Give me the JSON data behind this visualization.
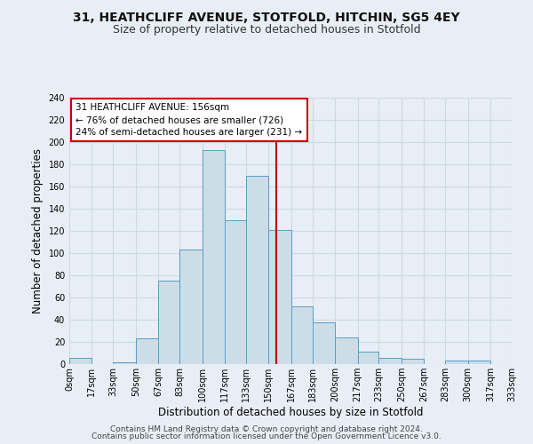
{
  "title1": "31, HEATHCLIFF AVENUE, STOTFOLD, HITCHIN, SG5 4EY",
  "title2": "Size of property relative to detached houses in Stotfold",
  "xlabel": "Distribution of detached houses by size in Stotfold",
  "ylabel": "Number of detached properties",
  "bar_labels": [
    "0sqm",
    "17sqm",
    "33sqm",
    "50sqm",
    "67sqm",
    "83sqm",
    "100sqm",
    "117sqm",
    "133sqm",
    "150sqm",
    "167sqm",
    "183sqm",
    "200sqm",
    "217sqm",
    "233sqm",
    "250sqm",
    "267sqm",
    "283sqm",
    "300sqm",
    "317sqm",
    "333sqm"
  ],
  "bin_edges": [
    0,
    17,
    33,
    50,
    67,
    83,
    100,
    117,
    133,
    150,
    167,
    183,
    200,
    217,
    233,
    250,
    267,
    283,
    300,
    317,
    333
  ],
  "bar_heights": [
    6,
    0,
    2,
    23,
    75,
    103,
    193,
    130,
    170,
    121,
    52,
    38,
    24,
    11,
    6,
    5,
    0,
    3,
    3,
    0
  ],
  "bar_color": "#ccdde8",
  "bar_edge_color": "#5a9dc8",
  "property_size": 156,
  "vline_color": "#cc0000",
  "annotation_title": "31 HEATHCLIFF AVENUE: 156sqm",
  "annotation_line1": "← 76% of detached houses are smaller (726)",
  "annotation_line2": "24% of semi-detached houses are larger (231) →",
  "annotation_box_color": "#ffffff",
  "annotation_box_edge_color": "#cc0000",
  "ylim": [
    0,
    240
  ],
  "yticks": [
    0,
    20,
    40,
    60,
    80,
    100,
    120,
    140,
    160,
    180,
    200,
    220,
    240
  ],
  "grid_color": "#d0d8e4",
  "bg_color": "#e8eef5",
  "fig_bg_color": "#e8eef5",
  "footer1": "Contains HM Land Registry data © Crown copyright and database right 2024.",
  "footer2": "Contains public sector information licensed under the Open Government Licence v3.0.",
  "title_fontsize": 10,
  "subtitle_fontsize": 9,
  "axis_label_fontsize": 8.5,
  "tick_fontsize": 7,
  "annotation_fontsize": 7.5,
  "footer_fontsize": 6.5
}
